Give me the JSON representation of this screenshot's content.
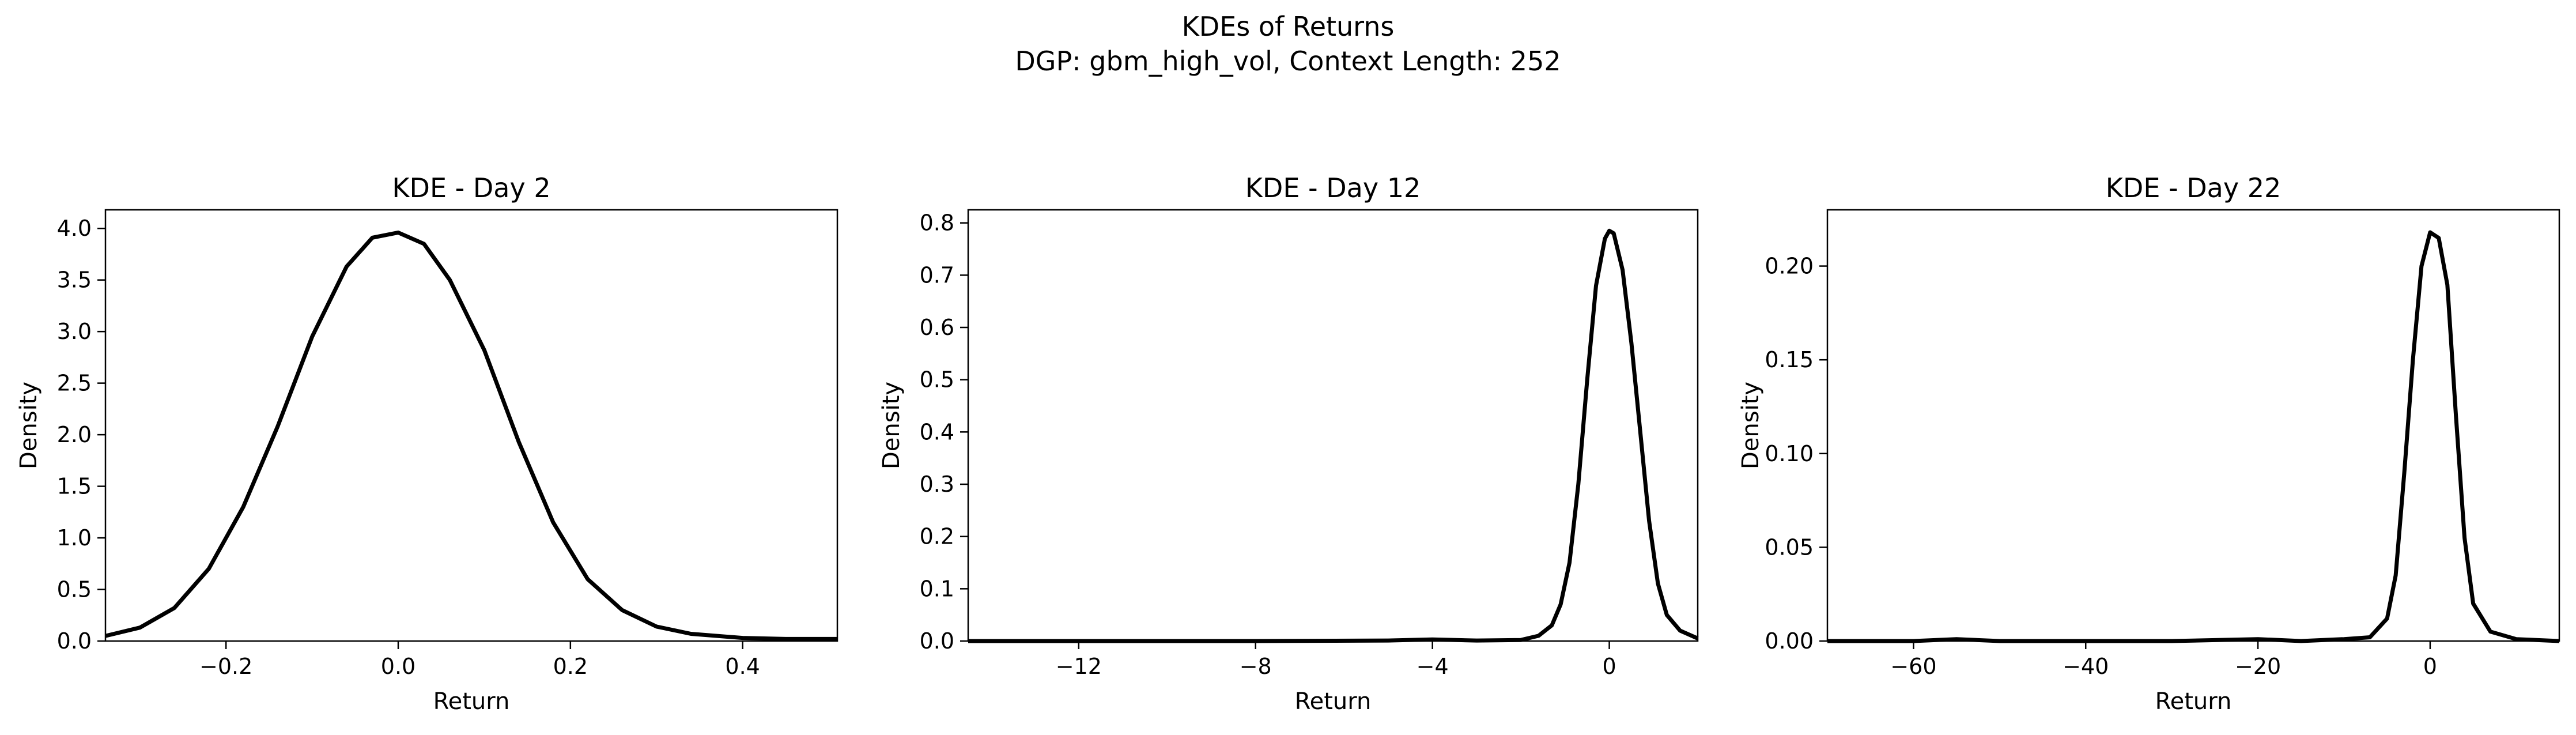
{
  "figure": {
    "title_line1": "KDEs of Returns",
    "title_line2": "DGP: gbm_high_vol, Context Length: 252"
  },
  "chart_data": [
    {
      "type": "line",
      "title": "KDE - Day 2",
      "xlabel": "Return",
      "ylabel": "Density",
      "xlim": [
        -0.34,
        0.51
      ],
      "ylim": [
        0,
        4.18
      ],
      "xticks": [
        -0.2,
        0.0,
        0.2,
        0.4
      ],
      "xtick_labels": [
        "−0.2",
        "0.0",
        "0.2",
        "0.4"
      ],
      "yticks": [
        0,
        0.5,
        1.0,
        1.5,
        2.0,
        2.5,
        3.0,
        3.5,
        4.0
      ],
      "ytick_labels": [
        "0.0",
        "0.5",
        "1.0",
        "1.5",
        "2.0",
        "2.5",
        "3.0",
        "3.5",
        "4.0"
      ],
      "grid": false,
      "series": [
        {
          "color": "#000000",
          "x": [
            -0.34,
            -0.3,
            -0.26,
            -0.22,
            -0.18,
            -0.14,
            -0.1,
            -0.06,
            -0.03,
            0.0,
            0.03,
            0.06,
            0.1,
            0.14,
            0.18,
            0.22,
            0.26,
            0.3,
            0.34,
            0.4,
            0.45,
            0.51
          ],
          "y": [
            0.05,
            0.13,
            0.32,
            0.7,
            1.3,
            2.08,
            2.95,
            3.63,
            3.91,
            3.96,
            3.85,
            3.5,
            2.82,
            1.93,
            1.15,
            0.6,
            0.3,
            0.14,
            0.07,
            0.03,
            0.02,
            0.02
          ]
        }
      ]
    },
    {
      "type": "line",
      "title": "KDE - Day 12",
      "xlabel": "Return",
      "ylabel": "Density",
      "xlim": [
        -14.5,
        2.0
      ],
      "ylim": [
        0,
        0.825
      ],
      "xticks": [
        -12,
        -8,
        -4,
        0
      ],
      "xtick_labels": [
        "−12",
        "−8",
        "−4",
        "0"
      ],
      "yticks": [
        0,
        0.1,
        0.2,
        0.3,
        0.4,
        0.5,
        0.6,
        0.7,
        0.8
      ],
      "ytick_labels": [
        "0.0",
        "0.1",
        "0.2",
        "0.3",
        "0.4",
        "0.5",
        "0.6",
        "0.7",
        "0.8"
      ],
      "grid": false,
      "series": [
        {
          "color": "#000000",
          "x": [
            -14.5,
            -12.0,
            -8.0,
            -5.0,
            -4.0,
            -3.0,
            -2.0,
            -1.6,
            -1.3,
            -1.1,
            -0.9,
            -0.7,
            -0.5,
            -0.3,
            -0.1,
            0.0,
            0.1,
            0.3,
            0.5,
            0.7,
            0.9,
            1.1,
            1.3,
            1.6,
            2.0
          ],
          "y": [
            0.0,
            0.0,
            0.0,
            0.001,
            0.003,
            0.001,
            0.002,
            0.01,
            0.03,
            0.07,
            0.15,
            0.3,
            0.5,
            0.68,
            0.77,
            0.785,
            0.78,
            0.71,
            0.57,
            0.4,
            0.23,
            0.11,
            0.05,
            0.02,
            0.005
          ]
        }
      ]
    },
    {
      "type": "line",
      "title": "KDE - Day 22",
      "xlabel": "Return",
      "ylabel": "Density",
      "xlim": [
        -70,
        15
      ],
      "ylim": [
        0,
        0.23
      ],
      "xticks": [
        -60,
        -40,
        -20,
        0
      ],
      "xtick_labels": [
        "−60",
        "−40",
        "−20",
        "0"
      ],
      "yticks": [
        0,
        0.05,
        0.1,
        0.15,
        0.2
      ],
      "ytick_labels": [
        "0.00",
        "0.05",
        "0.10",
        "0.15",
        "0.20"
      ],
      "grid": false,
      "series": [
        {
          "color": "#000000",
          "x": [
            -70,
            -60,
            -55,
            -50,
            -40,
            -30,
            -20,
            -15,
            -10,
            -7,
            -5,
            -4,
            -3,
            -2,
            -1,
            0,
            1,
            2,
            3,
            4,
            5,
            7,
            10,
            15
          ],
          "y": [
            0.0,
            0.0,
            0.001,
            0.0,
            0.0,
            0.0,
            0.001,
            0.0,
            0.001,
            0.002,
            0.012,
            0.035,
            0.09,
            0.15,
            0.2,
            0.218,
            0.215,
            0.19,
            0.12,
            0.055,
            0.02,
            0.005,
            0.001,
            0.0
          ]
        }
      ]
    }
  ]
}
